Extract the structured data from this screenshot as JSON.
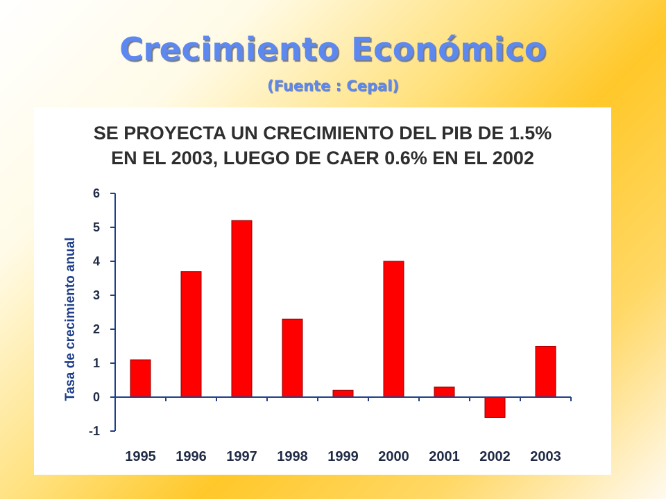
{
  "slide": {
    "title": "Crecimiento Económico",
    "subtitle": "(Fuente : Cepal)"
  },
  "chart_data": {
    "type": "bar",
    "title_line1": "SE PROYECTA UN CRECIMIENTO DEL PIB DE 1.5%",
    "title_line2": "EN EL 2003, LUEGO DE CAER 0.6% EN EL 2002",
    "xlabel": "",
    "ylabel": "Tasa de crecimiento anual",
    "categories": [
      "1995",
      "1996",
      "1997",
      "1998",
      "1999",
      "2000",
      "2001",
      "2002",
      "2003"
    ],
    "values": [
      1.1,
      3.7,
      5.2,
      2.3,
      0.2,
      4.0,
      0.3,
      -0.6,
      1.5
    ],
    "ylim": [
      -1,
      6
    ],
    "yticks": [
      "-1",
      "0",
      "1",
      "2",
      "3",
      "4",
      "5",
      "6"
    ],
    "grid": false,
    "legend": "none",
    "bar_color": "#ff0000",
    "bar_edge_color": "#8b0000"
  }
}
